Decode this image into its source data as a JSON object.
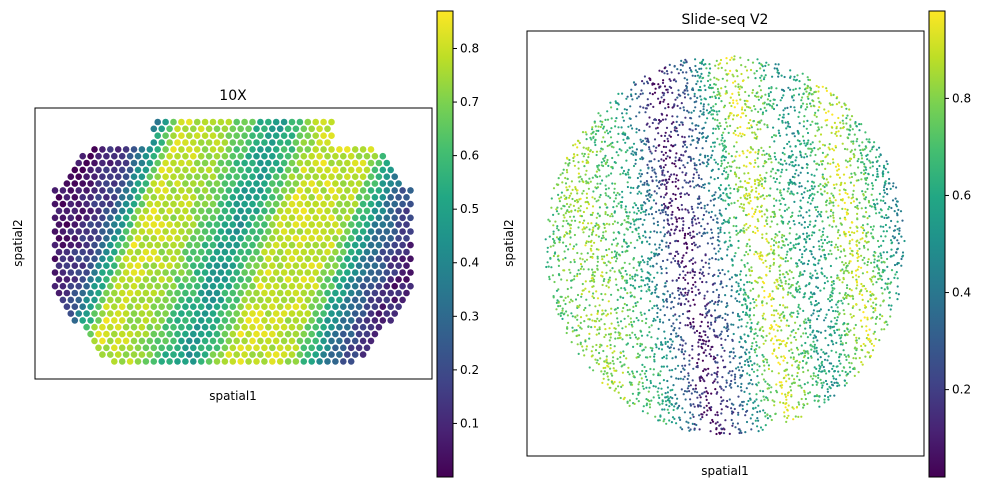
{
  "figure": {
    "background": "#ffffff"
  },
  "colormap": "viridis",
  "chart_data": [
    {
      "type": "scatter",
      "title": "10X",
      "xlabel": "spatial1",
      "ylabel": "spatial2",
      "grid": false,
      "marker": "hexagonal spot grid",
      "colorbar": {
        "range": [
          0.0,
          0.87
        ],
        "ticks": [
          0.1,
          0.2,
          0.3,
          0.4,
          0.5,
          0.6,
          0.7,
          0.8
        ],
        "tick_labels": [
          "0.1",
          "0.2",
          "0.3",
          "0.4",
          "0.5",
          "0.6",
          "0.7",
          "0.8"
        ]
      },
      "pattern": {
        "description": "two bright lobes (values ~0.8) separated by a darker diagonal stripe, dark (~0.0-0.2) at the far left and right edges",
        "bands": [
          {
            "position": 0.0,
            "value": 0.03
          },
          {
            "position": 0.12,
            "value": 0.2
          },
          {
            "position": 0.22,
            "value": 0.8
          },
          {
            "position": 0.35,
            "value": 0.75
          },
          {
            "position": 0.5,
            "value": 0.45
          },
          {
            "position": 0.62,
            "value": 0.8
          },
          {
            "position": 0.78,
            "value": 0.78
          },
          {
            "position": 0.9,
            "value": 0.3
          },
          {
            "position": 1.0,
            "value": 0.08
          }
        ]
      }
    },
    {
      "type": "scatter",
      "title": "Slide-seq V2",
      "xlabel": "spatial1",
      "ylabel": "spatial2",
      "grid": false,
      "marker": "dense small beads",
      "colorbar": {
        "range": [
          0.02,
          0.98
        ],
        "ticks": [
          0.2,
          0.4,
          0.6,
          0.8
        ],
        "tick_labels": [
          "0.2",
          "0.4",
          "0.6",
          "0.8"
        ]
      },
      "pattern": {
        "description": "circular tissue with diagonal stripes: outer green ring, yellow band, dark purple band, then bright yellow-green loop on the right",
        "bands": [
          {
            "position": 0.0,
            "value": 0.55
          },
          {
            "position": 0.18,
            "value": 0.85
          },
          {
            "position": 0.3,
            "value": 0.6
          },
          {
            "position": 0.4,
            "value": 0.05
          },
          {
            "position": 0.48,
            "value": 0.35
          },
          {
            "position": 0.58,
            "value": 0.95
          },
          {
            "position": 0.7,
            "value": 0.5
          },
          {
            "position": 0.8,
            "value": 0.92
          },
          {
            "position": 0.92,
            "value": 0.45
          },
          {
            "position": 1.0,
            "value": 0.3
          }
        ]
      }
    }
  ]
}
